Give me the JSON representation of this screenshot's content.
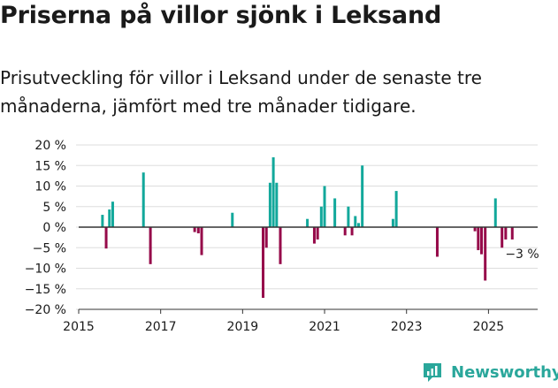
{
  "header": {
    "title": "Priserna på villor sjönk i Leksand",
    "subtitle": "Prisutveckling för villor i Leksand under de senaste tre månaderna, jämfört med tre månader tidigare."
  },
  "brand": {
    "name": "Newsworthy",
    "icon": "newsworthy-logo-icon"
  },
  "colors": {
    "positive": "#12a89b",
    "negative": "#960a4a",
    "grid": "#dddddd",
    "zero": "#333333",
    "brand": "#2aa79b"
  },
  "chart_data": {
    "type": "bar",
    "title": "",
    "xlabel": "",
    "ylabel": "",
    "xlim": [
      2015,
      2026.2
    ],
    "ylim": [
      -20,
      20
    ],
    "y_ticks": [
      20,
      15,
      10,
      5,
      0,
      -5,
      -10,
      -15,
      -20
    ],
    "y_tick_labels": [
      "20 %",
      "15 %",
      "10 %",
      "5 %",
      "0 %",
      "−5 %",
      "−10 %",
      "−15 %",
      "−20 %"
    ],
    "x_ticks": [
      2015,
      2017,
      2019,
      2021,
      2023,
      2025
    ],
    "x_tick_labels": [
      "2015",
      "2017",
      "2019",
      "2021",
      "2023",
      "2025"
    ],
    "annotation": {
      "x": 2025.65,
      "y": -3,
      "text": "−3 %"
    },
    "series": [
      {
        "name": "Prisutveckling",
        "points": [
          {
            "x": 2015.58,
            "y": 3
          },
          {
            "x": 2015.67,
            "y": -5.2
          },
          {
            "x": 2015.75,
            "y": 4.3
          },
          {
            "x": 2015.83,
            "y": 6.2
          },
          {
            "x": 2016.58,
            "y": 13.3
          },
          {
            "x": 2016.75,
            "y": -9
          },
          {
            "x": 2017.83,
            "y": -1.2
          },
          {
            "x": 2017.92,
            "y": -1.5
          },
          {
            "x": 2018.0,
            "y": -6.8
          },
          {
            "x": 2018.75,
            "y": 3.5
          },
          {
            "x": 2019.5,
            "y": -17.2
          },
          {
            "x": 2019.58,
            "y": -5
          },
          {
            "x": 2019.67,
            "y": 10.8
          },
          {
            "x": 2019.75,
            "y": 17
          },
          {
            "x": 2019.83,
            "y": 10.8
          },
          {
            "x": 2019.92,
            "y": -9
          },
          {
            "x": 2020.58,
            "y": 2
          },
          {
            "x": 2020.75,
            "y": -4
          },
          {
            "x": 2020.83,
            "y": -3
          },
          {
            "x": 2020.92,
            "y": 5
          },
          {
            "x": 2021.0,
            "y": 10
          },
          {
            "x": 2021.25,
            "y": 7
          },
          {
            "x": 2021.5,
            "y": -2
          },
          {
            "x": 2021.58,
            "y": 5
          },
          {
            "x": 2021.67,
            "y": -2
          },
          {
            "x": 2021.75,
            "y": 2.7
          },
          {
            "x": 2021.83,
            "y": 1
          },
          {
            "x": 2021.92,
            "y": 15
          },
          {
            "x": 2022.67,
            "y": 2
          },
          {
            "x": 2022.75,
            "y": 8.8
          },
          {
            "x": 2023.75,
            "y": -7.2
          },
          {
            "x": 2024.67,
            "y": -1
          },
          {
            "x": 2024.75,
            "y": -5.6
          },
          {
            "x": 2024.83,
            "y": -6.6
          },
          {
            "x": 2024.92,
            "y": -13
          },
          {
            "x": 2025.17,
            "y": 7
          },
          {
            "x": 2025.33,
            "y": -5
          },
          {
            "x": 2025.42,
            "y": -3
          },
          {
            "x": 2025.58,
            "y": -3
          }
        ]
      }
    ]
  }
}
